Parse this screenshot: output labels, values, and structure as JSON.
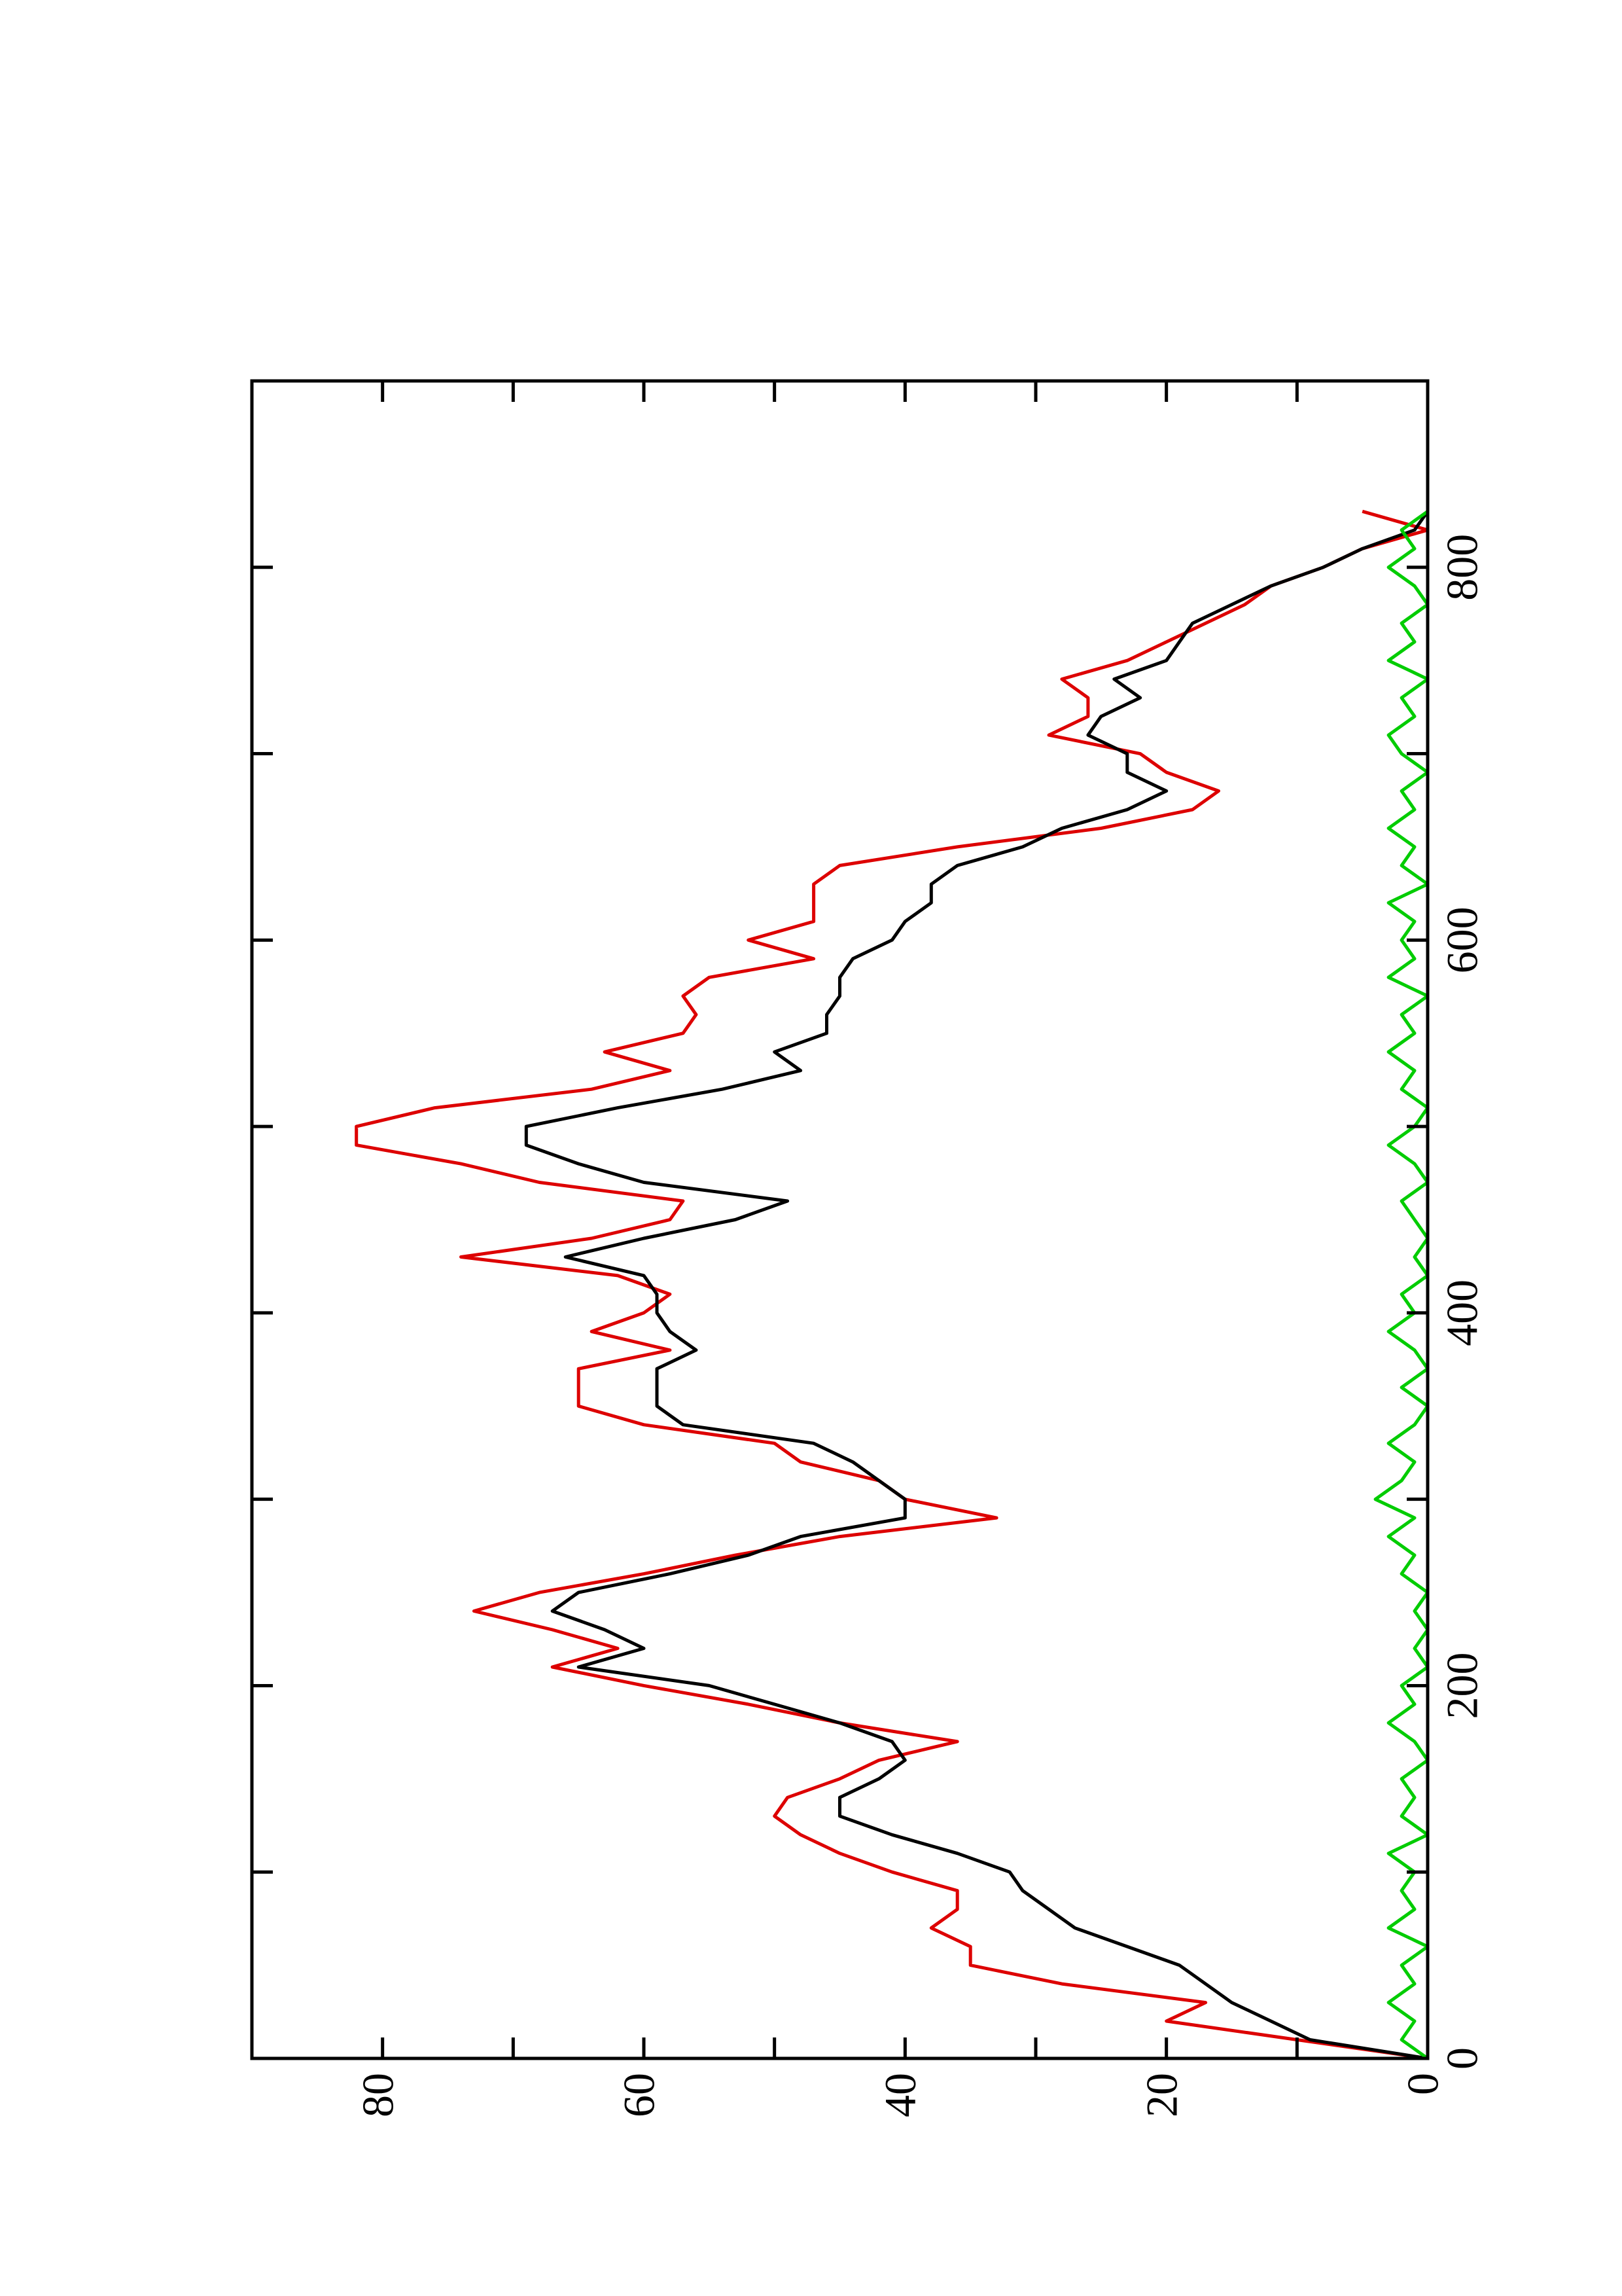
{
  "chart_data": {
    "type": "line",
    "x": [
      0,
      10,
      20,
      30,
      40,
      50,
      60,
      70,
      80,
      90,
      100,
      110,
      120,
      130,
      140,
      150,
      160,
      170,
      180,
      190,
      200,
      210,
      220,
      230,
      240,
      250,
      260,
      270,
      280,
      290,
      300,
      310,
      320,
      330,
      340,
      350,
      360,
      370,
      380,
      390,
      400,
      410,
      420,
      430,
      440,
      450,
      460,
      470,
      480,
      490,
      500,
      510,
      520,
      530,
      540,
      550,
      560,
      570,
      580,
      590,
      600,
      610,
      620,
      630,
      640,
      650,
      660,
      670,
      680,
      690,
      700,
      710,
      720,
      730,
      740,
      750,
      760,
      770,
      780,
      790,
      800,
      810,
      820,
      830
    ],
    "series": [
      {
        "color": "#dd0000",
        "values": [
          0,
          10,
          20,
          17,
          28,
          35,
          35,
          38,
          36,
          36,
          41,
          45,
          48,
          50,
          49,
          45,
          42,
          36,
          45,
          52,
          60,
          67,
          62,
          67,
          73,
          68,
          60,
          53,
          45,
          33,
          40,
          42,
          48,
          50,
          60,
          65,
          65,
          65,
          58,
          64,
          60,
          58,
          62,
          74,
          64,
          58,
          57,
          68,
          74,
          82,
          82,
          76,
          64,
          58,
          63,
          57,
          56,
          57,
          55,
          47,
          52,
          47,
          47,
          47,
          45,
          36,
          25,
          18,
          16,
          20,
          22,
          29,
          26,
          26,
          28,
          23,
          20,
          17,
          14,
          12,
          8,
          5,
          0,
          5
        ]
      },
      {
        "color": "#000000",
        "values": [
          0,
          9,
          12,
          15,
          17,
          19,
          23,
          27,
          29,
          31,
          32,
          36,
          41,
          45,
          45,
          42,
          40,
          41,
          45,
          50,
          55,
          65,
          60,
          63,
          67,
          65,
          58,
          52,
          48,
          40,
          40,
          42,
          44,
          47,
          57,
          59,
          59,
          59,
          56,
          58,
          59,
          59,
          60,
          66,
          60,
          53,
          49,
          60,
          65,
          69,
          69,
          62,
          54,
          48,
          50,
          46,
          46,
          45,
          45,
          44,
          41,
          40,
          38,
          38,
          36,
          31,
          28,
          23,
          20,
          23,
          23,
          26,
          25,
          22,
          24,
          20,
          19,
          18,
          15,
          12,
          8,
          5,
          1,
          0
        ]
      },
      {
        "color": "#00cc00",
        "values": [
          0,
          2,
          1,
          3,
          1,
          2,
          0,
          3,
          1,
          2,
          1,
          3,
          0,
          2,
          1,
          2,
          0,
          1,
          3,
          1,
          2,
          0,
          1,
          0,
          1,
          0,
          2,
          1,
          3,
          1,
          4,
          2,
          1,
          3,
          1,
          0,
          2,
          0,
          1,
          3,
          1,
          2,
          0,
          1,
          0,
          1,
          2,
          0,
          1,
          3,
          1,
          0,
          2,
          1,
          3,
          1,
          2,
          0,
          3,
          1,
          2,
          1,
          3,
          0,
          2,
          1,
          3,
          1,
          2,
          0,
          2,
          3,
          1,
          2,
          0,
          3,
          1,
          2,
          0,
          1,
          3,
          1,
          2,
          0
        ]
      }
    ],
    "xlim": [
      0,
      900
    ],
    "xticks": [
      0,
      200,
      400,
      600,
      800
    ],
    "xminorticks": [
      100,
      300,
      500,
      700
    ],
    "ylim": [
      0,
      90
    ],
    "yticks": [
      0,
      20,
      40,
      60,
      80
    ],
    "yminorticks": [
      10,
      30,
      50,
      70
    ]
  }
}
